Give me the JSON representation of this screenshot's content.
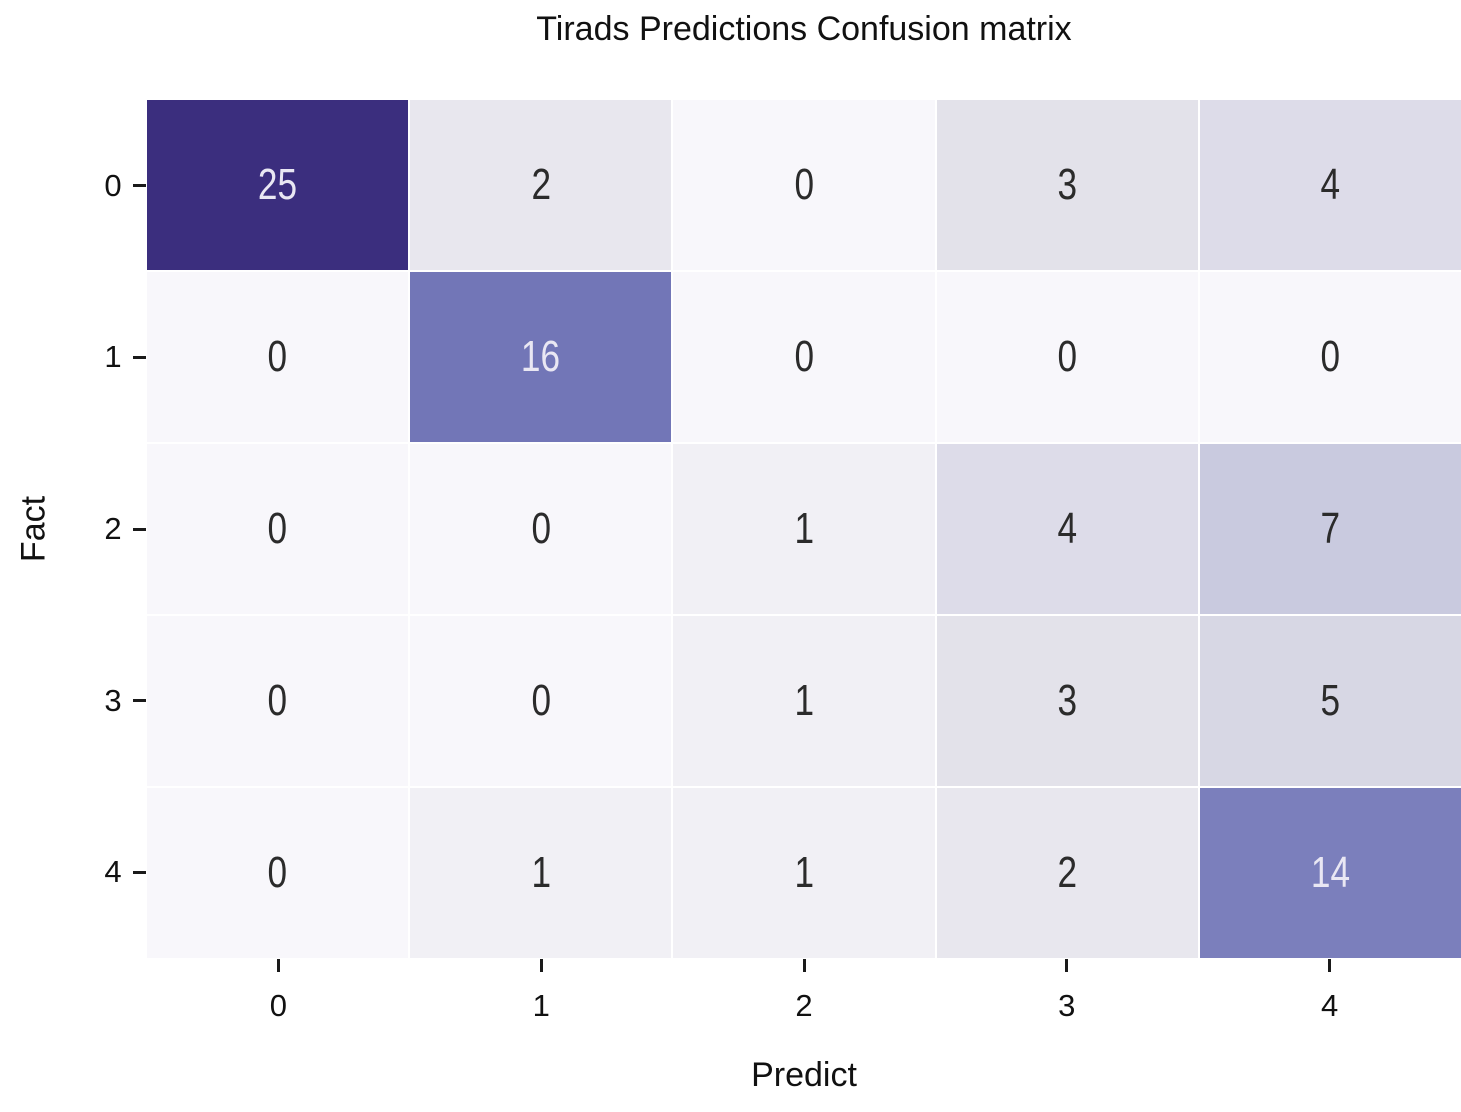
{
  "title": "Tirads Predictions Confusion matrix",
  "chart_data": {
    "type": "heatmap",
    "title": "Tirads Predictions Confusion matrix",
    "xlabel": "Predict",
    "ylabel": "Fact",
    "x_ticks": [
      "0",
      "1",
      "2",
      "3",
      "4"
    ],
    "y_ticks": [
      "0",
      "1",
      "2",
      "3",
      "4"
    ],
    "values": [
      [
        25,
        2,
        0,
        3,
        4
      ],
      [
        0,
        16,
        0,
        0,
        0
      ],
      [
        0,
        0,
        1,
        4,
        7
      ],
      [
        0,
        0,
        1,
        3,
        5
      ],
      [
        0,
        1,
        1,
        2,
        14
      ]
    ],
    "vmin": 0,
    "vmax": 25,
    "legend": "none",
    "grid_line_color": "#ffffff",
    "color_scale": {
      "0": "#f8f7fb",
      "1": "#f1f0f5",
      "2": "#e8e7ee",
      "3": "#e3e2ea",
      "4": "#dddce9",
      "5": "#d7d7e4",
      "7": "#c9cadf",
      "14": "#7b7fbc",
      "16": "#7276b7",
      "25": "#3b2e7e"
    },
    "annot_colors": {
      "dark": "#2b2b2b",
      "light": "#e9e7f3"
    },
    "light_text_threshold": 14,
    "tick_color": "#1a1a1a"
  }
}
